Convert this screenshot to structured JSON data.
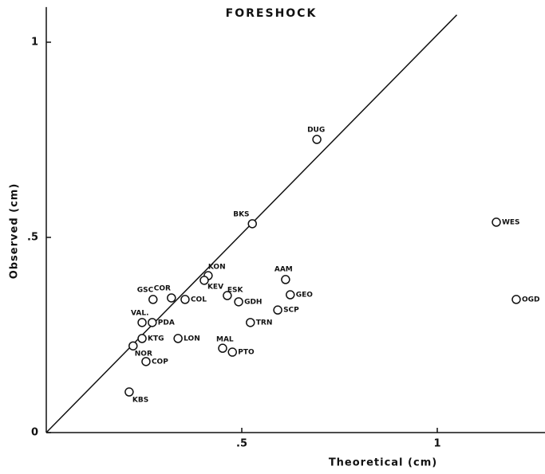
{
  "chart_data": {
    "type": "scatter",
    "title": "FORESHOCK",
    "xlabel": "Theoretical (cm)",
    "ylabel": "Observed (cm)",
    "labels": [
      "DUG",
      "BKS",
      "WES",
      "OGD",
      "COR",
      "KON",
      "KEV",
      "AAM",
      "ESK",
      "GDH",
      "GEO",
      "SCP",
      "GSC",
      "COL",
      "VAL.",
      "PDA",
      "MAL",
      "PTO",
      "TRN",
      "KTG",
      "LON",
      "NOR",
      "COP",
      "KBS"
    ],
    "x": [
      0.692,
      0.527,
      1.151,
      1.202,
      0.32,
      0.414,
      0.404,
      0.612,
      0.463,
      0.492,
      0.624,
      0.592,
      0.273,
      0.355,
      0.245,
      0.271,
      0.451,
      0.476,
      0.522,
      0.245,
      0.337,
      0.222,
      0.255,
      0.212
    ],
    "y": [
      0.751,
      0.535,
      0.539,
      0.341,
      0.345,
      0.402,
      0.39,
      0.392,
      0.351,
      0.335,
      0.353,
      0.314,
      0.341,
      0.341,
      0.282,
      0.282,
      0.216,
      0.206,
      0.282,
      0.241,
      0.241,
      0.222,
      0.182,
      0.104
    ],
    "line": {
      "x": [
        0,
        1.05
      ],
      "y": [
        0,
        1.07
      ]
    },
    "xlim": [
      0,
      1.28
    ],
    "ylim": [
      0,
      1.09
    ],
    "xticks": [
      {
        "value": 0.5,
        "label": ".5"
      },
      1
    ],
    "yticks": [
      0,
      {
        "value": 0.5,
        "label": ".5"
      },
      1
    ],
    "color": "#111111"
  }
}
